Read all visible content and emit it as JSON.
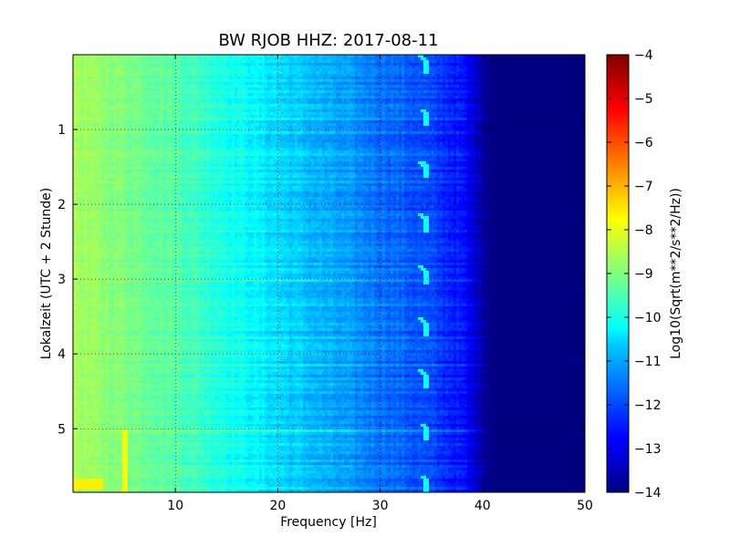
{
  "chart_data": {
    "type": "heatmap",
    "title": "BW RJOB HHZ: 2017-08-11",
    "xlabel": "Frequency [Hz]",
    "ylabel": "Lokalzeit (UTC + 2 Stunde)",
    "xlim": [
      0,
      50
    ],
    "ylim": [
      5.85,
      0.0
    ],
    "y_inverted": true,
    "x_ticks": [
      10,
      20,
      30,
      40,
      50
    ],
    "y_ticks": [
      1,
      2,
      3,
      4,
      5
    ],
    "grid": true,
    "colormap": "jet",
    "colorbar": {
      "label": "Log10(Sqrt(m**2/s**2/Hz))",
      "range": [
        -14,
        -4
      ],
      "ticks": [
        -4,
        -5,
        -6,
        -7,
        -8,
        -9,
        -10,
        -11,
        -12,
        -13,
        -14
      ]
    },
    "spectral_profile": {
      "description_units": "log10 amplitude vs frequency",
      "frequency_hz": [
        0,
        2,
        5,
        10,
        15,
        20,
        25,
        30,
        35,
        38,
        40,
        41,
        50
      ],
      "log10_amplitude": [
        -8.6,
        -8.8,
        -9.0,
        -9.4,
        -10.0,
        -10.6,
        -11.1,
        -11.6,
        -12.1,
        -12.6,
        -13.6,
        -14.0,
        -14.0
      ]
    },
    "features": [
      {
        "kind": "periodic narrowband line",
        "frequency_hz": 34.5,
        "repeat_interval_hours": 0.7
      },
      {
        "kind": "low-frequency spike",
        "frequency_hz": 5,
        "time_hours": [
          5.0,
          5.85
        ]
      },
      {
        "kind": "high-amplitude patch",
        "frequency_hz": [
          0,
          3
        ],
        "time_hours": [
          5.65,
          5.8
        ]
      }
    ]
  }
}
